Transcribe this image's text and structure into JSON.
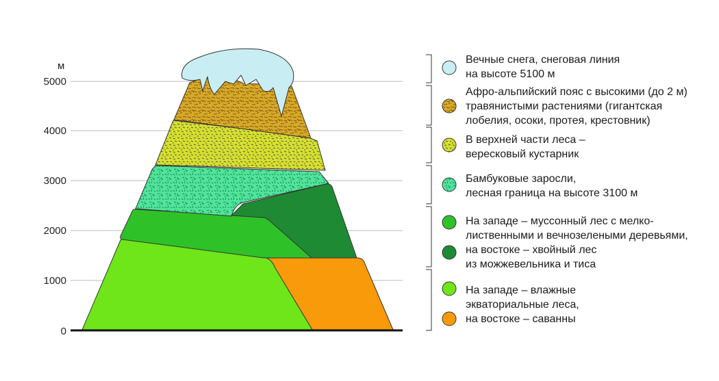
{
  "axis": {
    "unit": "м",
    "ticks": [
      "5000",
      "4000",
      "3000",
      "2000",
      "1000",
      "0"
    ]
  },
  "colors": {
    "snow": "#c8eef4",
    "alpine": "#d8a928",
    "heath": "#d6e02c",
    "bamboo": "#52e49c",
    "monsoon": "#2fc228",
    "conifer": "#1f8a34",
    "equatorial": "#6ee61a",
    "savanna": "#f99a0a"
  },
  "legend": [
    {
      "key": "snow",
      "lines": [
        "Вечные снега, снеговая линия",
        "на высоте 5100 м"
      ]
    },
    {
      "key": "alpine",
      "lines": [
        "Афро-альпийский пояс с высокими (до 2 м)",
        "травянистыми растениями  (гигантская",
        "лобелия, осоки, протея, крестовник)"
      ]
    },
    {
      "key": "heath",
      "lines": [
        "В верхней части леса –",
        "вересковый кустарник"
      ]
    },
    {
      "key": "bamboo",
      "lines": [
        "Бамбуковые заросли,",
        "лесная граница на высоте 3100 м"
      ]
    },
    {
      "key": "monsoon",
      "lines": [
        "На западе – муссонный лес с мелко-",
        "лиственными и вечнозелеными деревьями,"
      ]
    },
    {
      "key": "conifer",
      "lines": [
        "на востоке – хвойный лес",
        "из можжевельника и тиса"
      ]
    },
    {
      "key": "equatorial",
      "lines": [
        "На западе – влажные",
        "экваториальные леса,"
      ]
    },
    {
      "key": "savanna",
      "lines": [
        "на востоке – саванны"
      ]
    }
  ]
}
